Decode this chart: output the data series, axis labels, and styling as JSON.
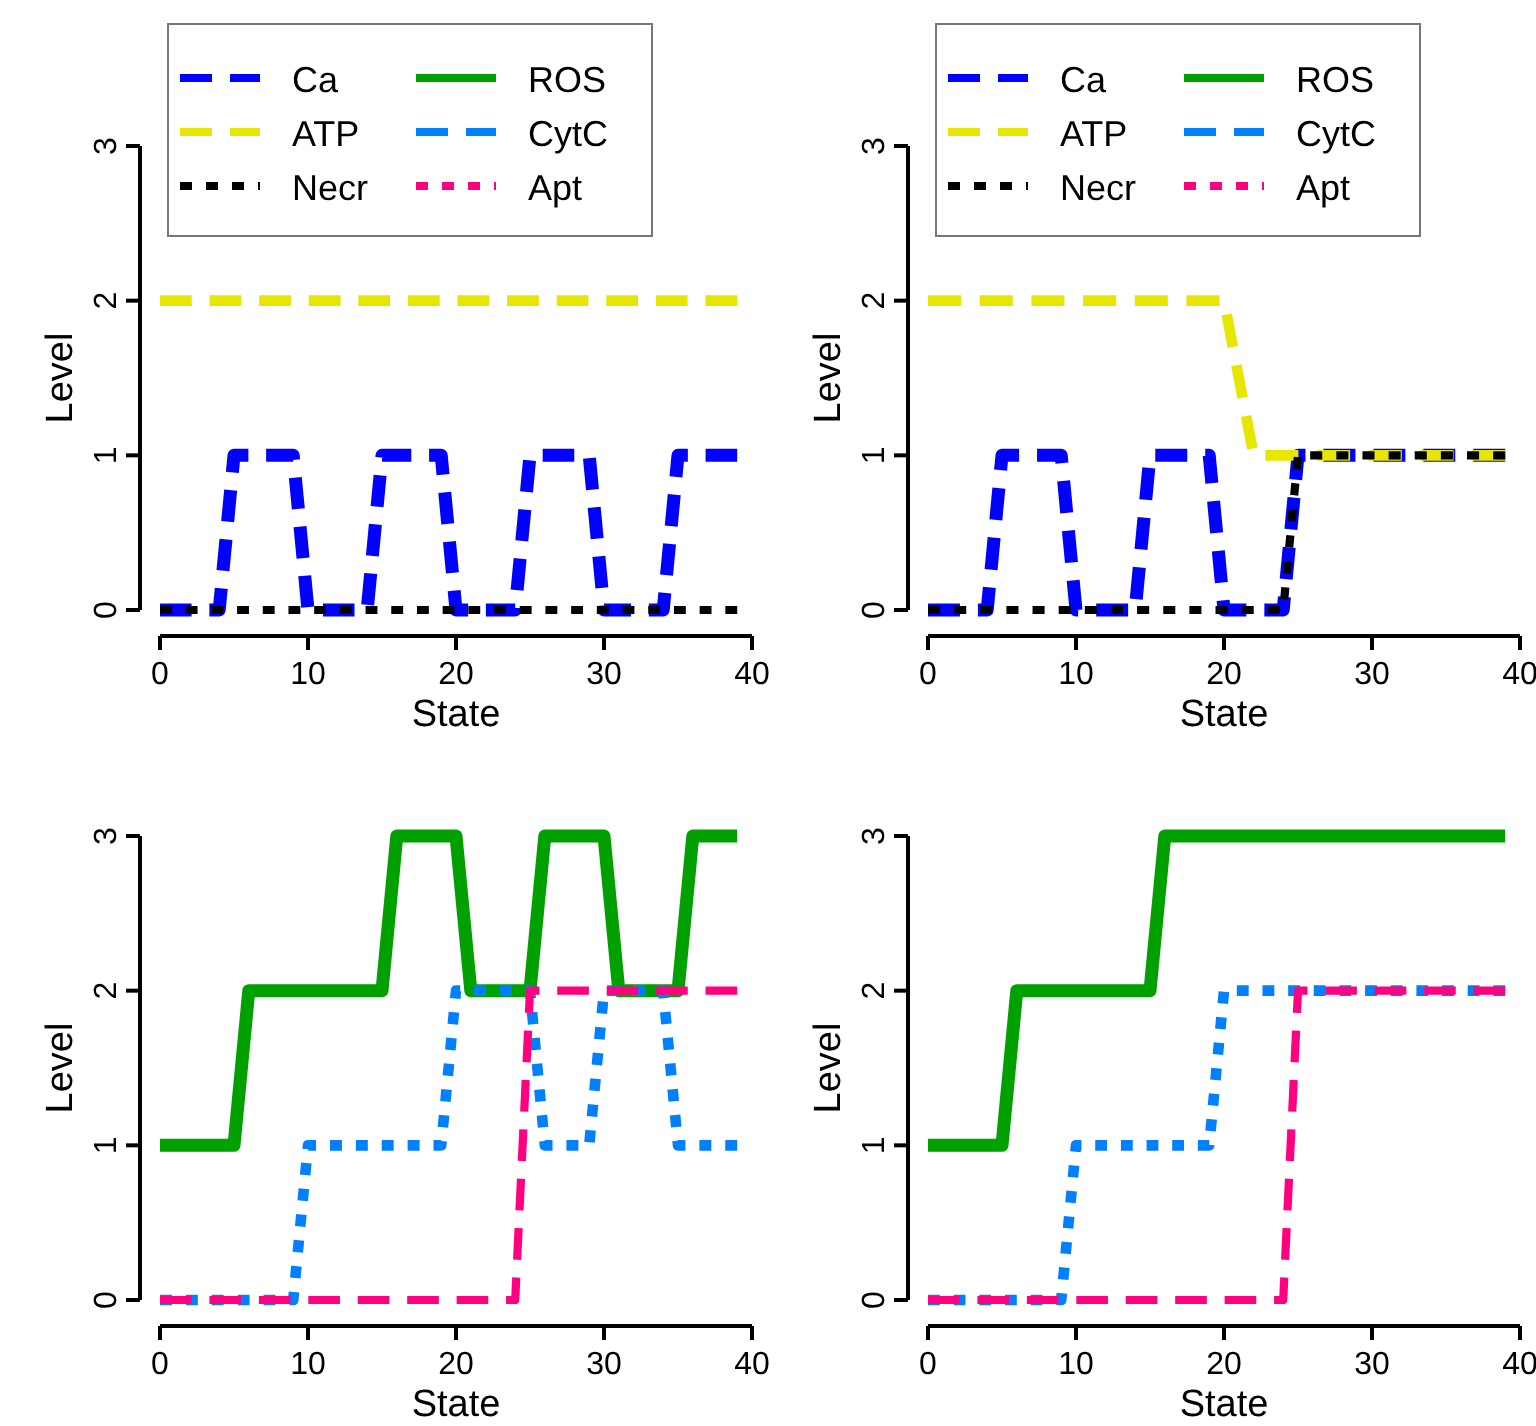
{
  "chart_data": [
    {
      "type": "line",
      "xlabel": "State",
      "ylabel": "Level",
      "xlim": [
        0,
        40
      ],
      "ylim": [
        0,
        3
      ],
      "xticks": [
        0,
        10,
        20,
        30,
        40
      ],
      "yticks": [
        0,
        1,
        2,
        3
      ],
      "legend": "top",
      "series": [
        {
          "name": "Ca",
          "color": "#0000ff",
          "line_style": "dashed",
          "x": [
            0,
            4,
            5,
            9,
            10,
            14,
            15,
            19,
            20,
            24,
            25,
            29,
            30,
            34,
            35,
            39
          ],
          "values": [
            0,
            0,
            1,
            1,
            0,
            0,
            1,
            1,
            0,
            0,
            1,
            1,
            0,
            0,
            1,
            1
          ]
        },
        {
          "name": "ATP",
          "color": "#e6e600",
          "line_style": "dashed",
          "x": [
            0,
            39
          ],
          "values": [
            2,
            2
          ]
        },
        {
          "name": "Necr",
          "color": "#000000",
          "line_style": "dotted",
          "x": [
            0,
            39
          ],
          "values": [
            0,
            0
          ]
        },
        {
          "name": "ROS",
          "color": "#00a000",
          "line_style": "solid"
        },
        {
          "name": "CytC",
          "color": "#0080ff",
          "line_style": "dashed"
        },
        {
          "name": "Apt",
          "color": "#ff0080",
          "line_style": "dotted"
        }
      ]
    },
    {
      "type": "line",
      "xlabel": "State",
      "ylabel": "Level",
      "xlim": [
        0,
        40
      ],
      "ylim": [
        0,
        3
      ],
      "xticks": [
        0,
        10,
        20,
        30,
        40
      ],
      "yticks": [
        0,
        1,
        2,
        3
      ],
      "legend": "top",
      "series": [
        {
          "name": "Ca",
          "color": "#0000ff",
          "line_style": "dashed",
          "x": [
            0,
            4,
            5,
            9,
            10,
            14,
            15,
            19,
            20,
            24,
            25,
            39
          ],
          "values": [
            0,
            0,
            1,
            1,
            0,
            0,
            1,
            1,
            0,
            0,
            1,
            1
          ]
        },
        {
          "name": "ATP",
          "color": "#e6e600",
          "line_style": "dashed",
          "x": [
            0,
            20,
            22,
            39
          ],
          "values": [
            2,
            2,
            1,
            1
          ]
        },
        {
          "name": "Necr",
          "color": "#000000",
          "line_style": "dotted",
          "x": [
            0,
            24,
            25,
            39
          ],
          "values": [
            0,
            0,
            1,
            1
          ]
        },
        {
          "name": "ROS",
          "color": "#00a000",
          "line_style": "solid"
        },
        {
          "name": "CytC",
          "color": "#0080ff",
          "line_style": "dashed"
        },
        {
          "name": "Apt",
          "color": "#ff0080",
          "line_style": "dotted"
        }
      ]
    },
    {
      "type": "line",
      "xlabel": "State",
      "ylabel": "Level",
      "xlim": [
        0,
        40
      ],
      "ylim": [
        0,
        3
      ],
      "xticks": [
        0,
        10,
        20,
        30,
        40
      ],
      "yticks": [
        0,
        1,
        2,
        3
      ],
      "series": [
        {
          "color": "#00a000",
          "line_style": "solid",
          "x": [
            0,
            5,
            6,
            15,
            16,
            20,
            21,
            25,
            26,
            30,
            31,
            35,
            36,
            39
          ],
          "values": [
            1,
            1,
            2,
            2,
            3,
            3,
            2,
            2,
            3,
            3,
            2,
            2,
            3,
            3
          ]
        },
        {
          "color": "#0080ff",
          "line_style": "dotted",
          "x": [
            0,
            9,
            10,
            19,
            20,
            25,
            26,
            29,
            30,
            34,
            35,
            39
          ],
          "values": [
            0,
            0,
            1,
            1,
            2,
            2,
            1,
            1,
            2,
            2,
            1,
            1
          ]
        },
        {
          "color": "#ff0080",
          "line_style": "dashed",
          "x": [
            0,
            24,
            25,
            39
          ],
          "values": [
            0,
            0,
            2,
            2
          ]
        }
      ]
    },
    {
      "type": "line",
      "xlabel": "State",
      "ylabel": "Level",
      "xlim": [
        0,
        40
      ],
      "ylim": [
        0,
        3
      ],
      "xticks": [
        0,
        10,
        20,
        30,
        40
      ],
      "yticks": [
        0,
        1,
        2,
        3
      ],
      "series": [
        {
          "color": "#00a000",
          "line_style": "solid",
          "x": [
            0,
            5,
            6,
            15,
            16,
            39
          ],
          "values": [
            1,
            1,
            2,
            2,
            3,
            3
          ]
        },
        {
          "color": "#0080ff",
          "line_style": "dotted",
          "x": [
            0,
            9,
            10,
            19,
            20,
            39
          ],
          "values": [
            0,
            0,
            1,
            1,
            2,
            2
          ]
        },
        {
          "color": "#ff0080",
          "line_style": "dashed",
          "x": [
            0,
            24,
            25,
            39
          ],
          "values": [
            0,
            0,
            2,
            2
          ]
        }
      ]
    }
  ]
}
